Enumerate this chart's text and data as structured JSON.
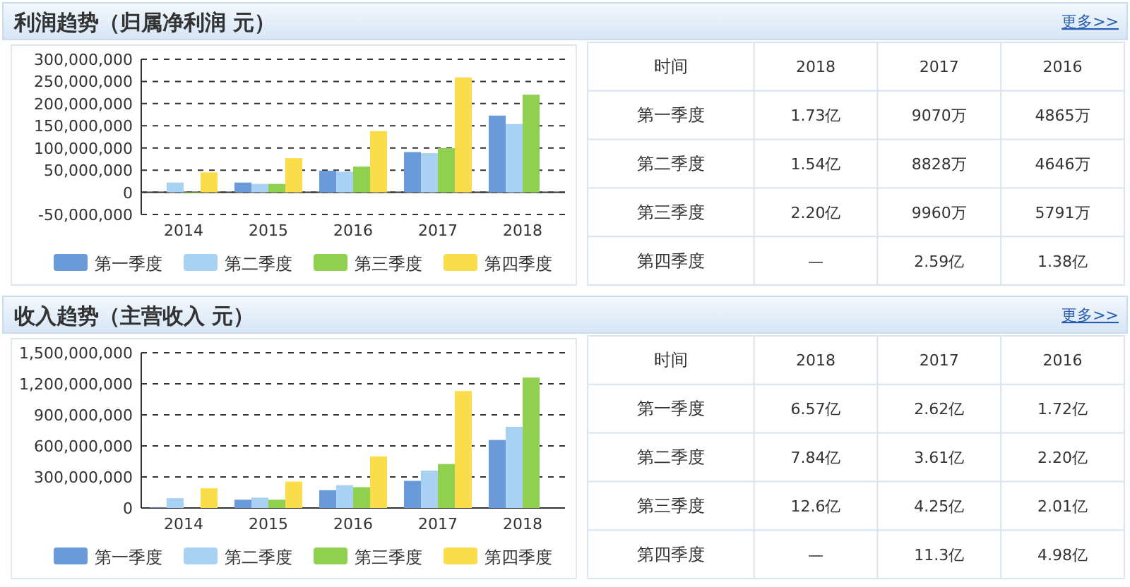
{
  "chart_data": [
    {
      "type": "bar",
      "title": "利润趋势（归属净利润 元）",
      "categories": [
        "2014",
        "2015",
        "2016",
        "2017",
        "2018"
      ],
      "series": [
        {
          "name": "第一季度",
          "color": "#6a9bd8",
          "values": [
            0,
            22000000,
            48650000,
            90700000,
            173000000
          ]
        },
        {
          "name": "第二季度",
          "color": "#a9d2f2",
          "values": [
            22000000,
            19000000,
            46460000,
            88280000,
            154000000
          ]
        },
        {
          "name": "第三季度",
          "color": "#8fd14f",
          "values": [
            -2000000,
            19000000,
            57910000,
            99600000,
            220000000
          ]
        },
        {
          "name": "第四季度",
          "color": "#f9dd4a",
          "values": [
            45000000,
            77000000,
            138000000,
            259000000,
            null
          ]
        }
      ],
      "ylim": [
        -50000000,
        300000000
      ],
      "yticks": [
        {
          "value": -50000000,
          "label": "-50,000,000"
        },
        {
          "value": 0,
          "label": "0"
        },
        {
          "value": 50000000,
          "label": "50,000,000"
        },
        {
          "value": 100000000,
          "label": "100,000,000"
        },
        {
          "value": 150000000,
          "label": "150,000,000"
        },
        {
          "value": 200000000,
          "label": "200,000,000"
        },
        {
          "value": 250000000,
          "label": "250,000,000"
        },
        {
          "value": 300000000,
          "label": "300,000,000"
        }
      ],
      "grid": "y",
      "legend": "bottom"
    },
    {
      "type": "other",
      "annotations": [
        "更多>>",
        "时间"
      ],
      "categories": [
        "2018",
        "2017",
        "2016"
      ],
      "y_categories": [
        "第一季度",
        "第二季度",
        "第三季度",
        "第四季度"
      ],
      "cell_labels": [
        [
          "1.73亿",
          "9070万",
          "4865万"
        ],
        [
          "1.54亿",
          "8828万",
          "4646万"
        ],
        [
          "2.20亿",
          "9960万",
          "5791万"
        ],
        [
          "—",
          "2.59亿",
          "1.38亿"
        ]
      ]
    },
    {
      "type": "bar",
      "title": "收入趋势（主营收入 元）",
      "categories": [
        "2014",
        "2015",
        "2016",
        "2017",
        "2018"
      ],
      "series": [
        {
          "name": "第一季度",
          "color": "#6a9bd8",
          "values": [
            5000000,
            80000000,
            172000000,
            262000000,
            657000000
          ]
        },
        {
          "name": "第二季度",
          "color": "#a9d2f2",
          "values": [
            95000000,
            100000000,
            220000000,
            361000000,
            784000000
          ]
        },
        {
          "name": "第三季度",
          "color": "#8fd14f",
          "values": [
            0,
            80000000,
            201000000,
            425000000,
            1260000000
          ]
        },
        {
          "name": "第四季度",
          "color": "#f9dd4a",
          "values": [
            190000000,
            255000000,
            498000000,
            1130000000,
            null
          ]
        }
      ],
      "ylim": [
        0,
        1500000000
      ],
      "yticks": [
        {
          "value": 0,
          "label": "0"
        },
        {
          "value": 300000000,
          "label": "300,000,000"
        },
        {
          "value": 600000000,
          "label": "600,000,000"
        },
        {
          "value": 900000000,
          "label": "900,000,000"
        },
        {
          "value": 1200000000,
          "label": "1,200,000,000"
        },
        {
          "value": 1500000000,
          "label": "1,500,000,000"
        }
      ],
      "grid": "y",
      "legend": "bottom"
    },
    {
      "type": "other",
      "annotations": [
        "更多>>",
        "时间"
      ],
      "categories": [
        "2018",
        "2017",
        "2016"
      ],
      "y_categories": [
        "第一季度",
        "第二季度",
        "第三季度",
        "第四季度"
      ],
      "cell_labels": [
        [
          "6.57亿",
          "2.62亿",
          "1.72亿"
        ],
        [
          "7.84亿",
          "3.61亿",
          "2.20亿"
        ],
        [
          "12.6亿",
          "4.25亿",
          "2.01亿"
        ],
        [
          "—",
          "11.3亿",
          "4.98亿"
        ]
      ]
    }
  ]
}
